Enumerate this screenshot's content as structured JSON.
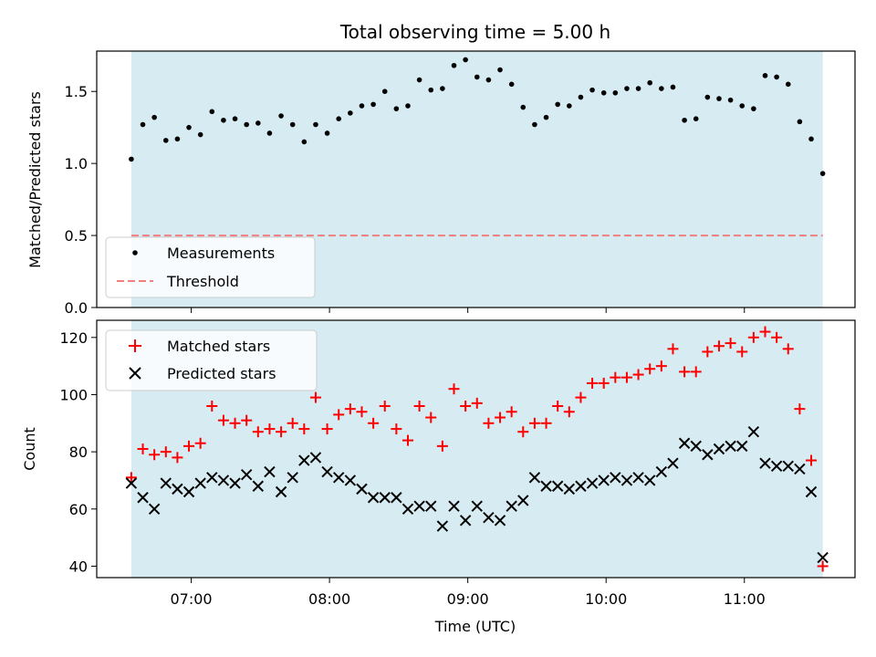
{
  "chart_data": [
    {
      "type": "scatter",
      "title": "Total observing time = 5.00 h",
      "xlabel": "",
      "ylabel": "Matched/Predicted stars",
      "ylim": [
        0,
        1.78
      ],
      "yticks": [
        "0.0",
        "0.5",
        "1.0",
        "1.5"
      ],
      "shaded_span": [
        "06:34",
        "11:34"
      ],
      "shade_color": "#add8e6",
      "legend_position": "lower-left",
      "series": [
        {
          "name": "Measurements",
          "marker": "dot",
          "color": "#000000",
          "x": [
            "06:34",
            "06:39",
            "06:44",
            "06:49",
            "06:54",
            "06:59",
            "07:04",
            "07:09",
            "07:14",
            "07:19",
            "07:24",
            "07:29",
            "07:34",
            "07:39",
            "07:44",
            "07:49",
            "07:54",
            "07:59",
            "08:04",
            "08:09",
            "08:14",
            "08:19",
            "08:24",
            "08:29",
            "08:34",
            "08:39",
            "08:44",
            "08:49",
            "08:54",
            "08:59",
            "09:04",
            "09:09",
            "09:14",
            "09:19",
            "09:24",
            "09:29",
            "09:34",
            "09:39",
            "09:44",
            "09:49",
            "09:54",
            "09:59",
            "10:04",
            "10:09",
            "10:14",
            "10:19",
            "10:24",
            "10:29",
            "10:34",
            "10:39",
            "10:44",
            "10:49",
            "10:54",
            "10:59",
            "11:04",
            "11:09",
            "11:14",
            "11:19",
            "11:24",
            "11:29",
            "11:34"
          ],
          "y": [
            1.03,
            1.27,
            1.32,
            1.16,
            1.17,
            1.25,
            1.2,
            1.36,
            1.3,
            1.31,
            1.27,
            1.28,
            1.21,
            1.33,
            1.27,
            1.15,
            1.27,
            1.21,
            1.31,
            1.35,
            1.4,
            1.41,
            1.5,
            1.38,
            1.4,
            1.58,
            1.51,
            1.52,
            1.68,
            1.72,
            1.6,
            1.58,
            1.65,
            1.55,
            1.39,
            1.27,
            1.32,
            1.41,
            1.4,
            1.46,
            1.51,
            1.49,
            1.49,
            1.52,
            1.52,
            1.56,
            1.52,
            1.53,
            1.3,
            1.31,
            1.46,
            1.45,
            1.44,
            1.4,
            1.38,
            1.61,
            1.6,
            1.55,
            1.29,
            1.17,
            0.93
          ]
        },
        {
          "name": "Threshold",
          "marker": "dashed-line",
          "color": "#f08080",
          "y_constant": 0.5
        }
      ]
    },
    {
      "type": "scatter",
      "xlabel": "Time (UTC)",
      "ylabel": "Count",
      "ylim": [
        36,
        126
      ],
      "yticks": [
        "40",
        "60",
        "80",
        "100",
        "120"
      ],
      "xticks": [
        "07:00",
        "08:00",
        "09:00",
        "10:00",
        "11:00"
      ],
      "xlim": [
        "06:19",
        "11:48"
      ],
      "legend_position": "upper-left",
      "series": [
        {
          "name": "Matched stars",
          "marker": "plus",
          "color": "#ff0000",
          "x": [
            "06:34",
            "06:39",
            "06:44",
            "06:49",
            "06:54",
            "06:59",
            "07:04",
            "07:09",
            "07:14",
            "07:19",
            "07:24",
            "07:29",
            "07:34",
            "07:39",
            "07:44",
            "07:49",
            "07:54",
            "07:59",
            "08:04",
            "08:09",
            "08:14",
            "08:19",
            "08:24",
            "08:29",
            "08:34",
            "08:39",
            "08:44",
            "08:49",
            "08:54",
            "08:59",
            "09:04",
            "09:09",
            "09:14",
            "09:19",
            "09:24",
            "09:29",
            "09:34",
            "09:39",
            "09:44",
            "09:49",
            "09:54",
            "09:59",
            "10:04",
            "10:09",
            "10:14",
            "10:19",
            "10:24",
            "10:29",
            "10:34",
            "10:39",
            "10:44",
            "10:49",
            "10:54",
            "10:59",
            "11:04",
            "11:09",
            "11:14",
            "11:19",
            "11:24",
            "11:29",
            "11:34"
          ],
          "y": [
            71,
            81,
            79,
            80,
            78,
            82,
            83,
            96,
            91,
            90,
            91,
            87,
            88,
            87,
            90,
            88,
            99,
            88,
            93,
            95,
            94,
            90,
            96,
            88,
            84,
            96,
            92,
            82,
            102,
            96,
            97,
            90,
            92,
            94,
            87,
            90,
            90,
            96,
            94,
            99,
            104,
            104,
            106,
            106,
            107,
            109,
            110,
            116,
            108,
            108,
            115,
            117,
            118,
            115,
            120,
            122,
            120,
            116,
            95,
            77,
            40
          ]
        },
        {
          "name": "Predicted stars",
          "marker": "x",
          "color": "#000000",
          "x": [
            "06:34",
            "06:39",
            "06:44",
            "06:49",
            "06:54",
            "06:59",
            "07:04",
            "07:09",
            "07:14",
            "07:19",
            "07:24",
            "07:29",
            "07:34",
            "07:39",
            "07:44",
            "07:49",
            "07:54",
            "07:59",
            "08:04",
            "08:09",
            "08:14",
            "08:19",
            "08:24",
            "08:29",
            "08:34",
            "08:39",
            "08:44",
            "08:49",
            "08:54",
            "08:59",
            "09:04",
            "09:09",
            "09:14",
            "09:19",
            "09:24",
            "09:29",
            "09:34",
            "09:39",
            "09:44",
            "09:49",
            "09:54",
            "09:59",
            "10:04",
            "10:09",
            "10:14",
            "10:19",
            "10:24",
            "10:29",
            "10:34",
            "10:39",
            "10:44",
            "10:49",
            "10:54",
            "10:59",
            "11:04",
            "11:09",
            "11:14",
            "11:19",
            "11:24",
            "11:29",
            "11:34"
          ],
          "y": [
            69,
            64,
            60,
            69,
            67,
            66,
            69,
            71,
            70,
            69,
            72,
            68,
            73,
            66,
            71,
            77,
            78,
            73,
            71,
            70,
            67,
            64,
            64,
            64,
            60,
            61,
            61,
            54,
            61,
            56,
            61,
            57,
            56,
            61,
            63,
            71,
            68,
            68,
            67,
            68,
            69,
            70,
            71,
            70,
            71,
            70,
            73,
            76,
            83,
            82,
            79,
            81,
            82,
            82,
            87,
            76,
            75,
            75,
            74,
            66,
            43
          ]
        }
      ]
    }
  ]
}
